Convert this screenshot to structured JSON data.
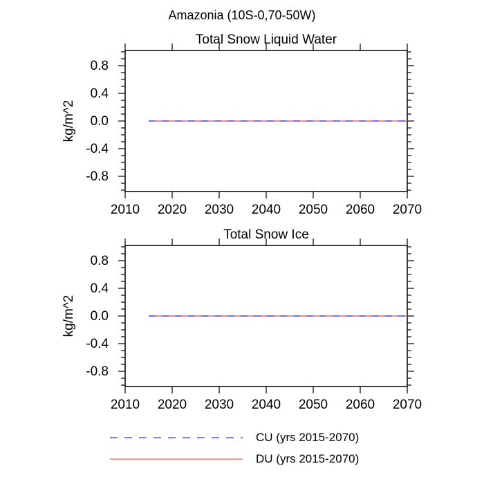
{
  "header": {
    "title": "Amazonia (10S-0,70-50W)"
  },
  "legend": {
    "entries": [
      {
        "label": "CU (yrs 2015-2070)",
        "style": "dashed",
        "color": "#7070e0"
      },
      {
        "label": "DU (yrs 2015-2070)",
        "style": "solid",
        "color": "#f48a8a"
      }
    ]
  },
  "colors": {
    "frame": "#000000",
    "background": "#ffffff",
    "text": "#000000"
  },
  "chart_data": [
    {
      "type": "line",
      "title": "Total Snow Liquid Water",
      "xlabel": "",
      "ylabel": "kg/m^2",
      "xlim": [
        2010,
        2070
      ],
      "ylim": [
        -1.02,
        1.02
      ],
      "x_ticks": [
        2010,
        2020,
        2030,
        2040,
        2050,
        2060,
        2070
      ],
      "y_ticks": [
        0.8,
        0.4,
        0.0,
        -0.4,
        -0.8
      ],
      "y_minor_step": 0.1,
      "y_minor_range": [
        -1.0,
        1.0
      ],
      "grid": false,
      "legend_position": "below-figure",
      "series": [
        {
          "name": "CU (yrs 2015-2070)",
          "color": "#7070e0",
          "style": "dashed",
          "x": [
            2015,
            2070
          ],
          "y": [
            0.0,
            0.0
          ]
        },
        {
          "name": "DU (yrs 2015-2070)",
          "color": "#f48a8a",
          "style": "solid",
          "x": [
            2015,
            2070
          ],
          "y": [
            0.0,
            0.0
          ]
        }
      ]
    },
    {
      "type": "line",
      "title": "Total Snow Ice",
      "xlabel": "",
      "ylabel": "kg/m^2",
      "xlim": [
        2010,
        2070
      ],
      "ylim": [
        -1.02,
        1.02
      ],
      "x_ticks": [
        2010,
        2020,
        2030,
        2040,
        2050,
        2060,
        2070
      ],
      "y_ticks": [
        0.8,
        0.4,
        0.0,
        -0.4,
        -0.8
      ],
      "y_minor_step": 0.1,
      "y_minor_range": [
        -1.0,
        1.0
      ],
      "grid": false,
      "legend_position": "below-figure",
      "series": [
        {
          "name": "CU (yrs 2015-2070)",
          "color": "#7070e0",
          "style": "dashed",
          "x": [
            2015,
            2070
          ],
          "y": [
            0.0,
            0.0
          ]
        },
        {
          "name": "DU (yrs 2015-2070)",
          "color": "#f48a8a",
          "style": "solid",
          "x": [
            2015,
            2070
          ],
          "y": [
            0.0,
            0.0
          ]
        }
      ]
    }
  ]
}
